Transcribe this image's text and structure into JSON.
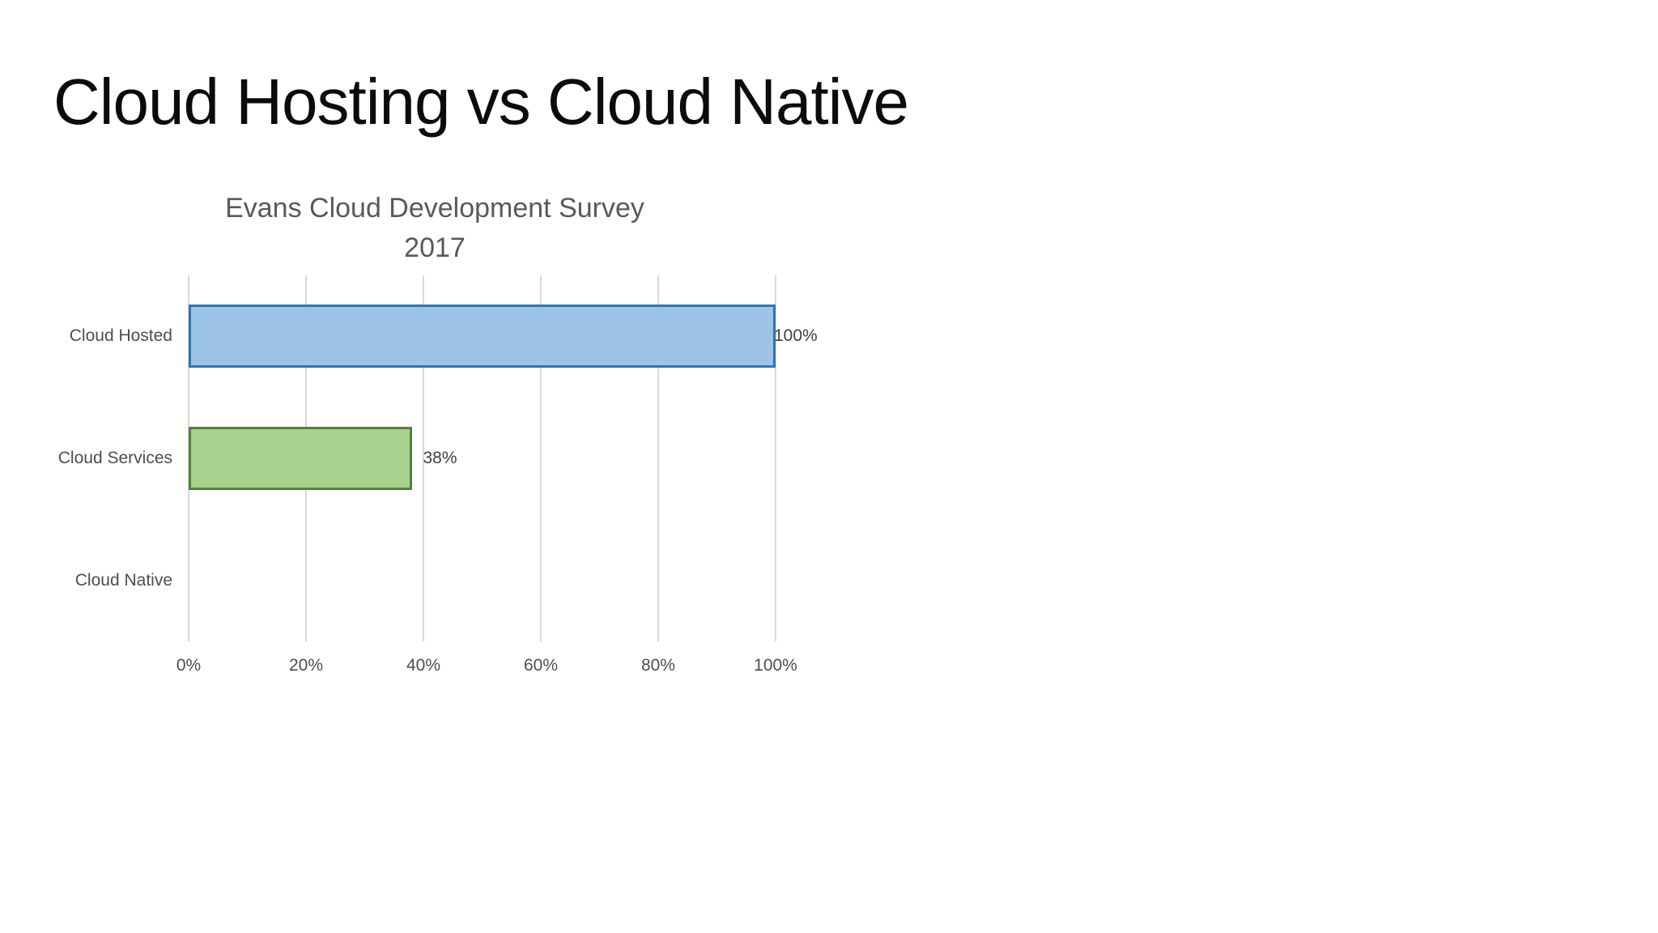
{
  "page": {
    "title": "Cloud Hosting vs Cloud Native",
    "background": "#ffffff"
  },
  "chart_data": {
    "type": "bar",
    "orientation": "horizontal",
    "title": "Evans Cloud Development Survey 2017",
    "title_lines": [
      "Evans Cloud Development Survey",
      "2017"
    ],
    "categories": [
      "Cloud Hosted",
      "Cloud Services",
      "Cloud Native"
    ],
    "values": [
      100,
      38,
      0
    ],
    "data_labels": [
      "100%",
      "38%",
      ""
    ],
    "bar_styles": [
      {
        "fill": "#9DC3E6",
        "border": "#2E75B6"
      },
      {
        "fill": "#A9D18E",
        "border": "#548235"
      },
      {
        "fill": "none",
        "border": "none"
      }
    ],
    "x_ticks": [
      {
        "label": "0%",
        "value": 0
      },
      {
        "label": "20%",
        "value": 20
      },
      {
        "label": "40%",
        "value": 40
      },
      {
        "label": "60%",
        "value": 60
      },
      {
        "label": "80%",
        "value": 80
      },
      {
        "label": "100%",
        "value": 100
      }
    ],
    "xlim": [
      0,
      100
    ],
    "grid": true,
    "legend": "none",
    "colors": {
      "gridline": "#D9D9D9",
      "axis_text": "#4d4d4d",
      "title_text": "#595959",
      "page_title_text": "#0b0b0b"
    }
  }
}
